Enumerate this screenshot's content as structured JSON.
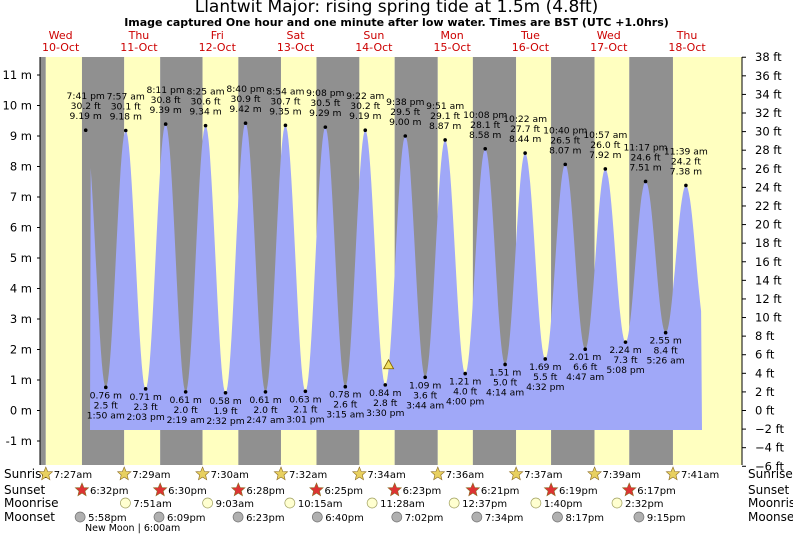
{
  "title": "Llantwit Major: rising  spring tide at 1.5m (4.8ft)",
  "subtitle": "Image captured One hour and one minute after low water. Times are BST (UTC +1.0hrs)",
  "colors": {
    "day": "#ffffc0",
    "night": "#909090",
    "tide": "#a0a8f8",
    "date_text": "#cc0000",
    "sun_star": "#e8d060",
    "sunset_star": "#dd3333"
  },
  "chart_data": {
    "type": "area",
    "xlim_days": [
      0,
      9.0
    ],
    "ylim_m": [
      -1.8,
      11.7
    ],
    "yticks_m": [
      "-1 m",
      "0 m",
      "1 m",
      "2 m",
      "3 m",
      "4 m",
      "5 m",
      "6 m",
      "7 m",
      "8 m",
      "9 m",
      "10 m",
      "11 m"
    ],
    "yticks_ft": [
      "−6 ft",
      "−4 ft",
      "−2 ft",
      "0 ft",
      "2 ft",
      "4 ft",
      "6 ft",
      "8 ft",
      "10 ft",
      "12 ft",
      "14 ft",
      "16 ft",
      "18 ft",
      "20 ft",
      "22 ft",
      "24 ft",
      "26 ft",
      "28 ft",
      "30 ft",
      "32 ft",
      "34 ft",
      "36 ft",
      "38 ft"
    ],
    "day_labels": [
      {
        "dow": "Wed",
        "date": "10-Oct",
        "day": 0
      },
      {
        "dow": "Thu",
        "date": "11-Oct",
        "day": 1
      },
      {
        "dow": "Fri",
        "date": "12-Oct",
        "day": 2
      },
      {
        "dow": "Sat",
        "date": "13-Oct",
        "day": 3
      },
      {
        "dow": "Sun",
        "date": "14-Oct",
        "day": 4
      },
      {
        "dow": "Mon",
        "date": "15-Oct",
        "day": 5
      },
      {
        "dow": "Tue",
        "date": "16-Oct",
        "day": 6
      },
      {
        "dow": "Wed",
        "date": "17-Oct",
        "day": 7
      },
      {
        "dow": "Thu",
        "date": "18-Oct",
        "day": 8
      }
    ],
    "tides": [
      {
        "type": "high",
        "day": 0,
        "time": "7:41 pm",
        "m": 9.19,
        "ft": "30.2 ft",
        "m_label": "9.19 m"
      },
      {
        "type": "low",
        "day": 1,
        "time": "1:50 am",
        "m": 0.76,
        "ft": "2.5 ft",
        "m_label": "0.76 m"
      },
      {
        "type": "high",
        "day": 1,
        "time": "7:57 am",
        "m": 9.18,
        "ft": "30.1 ft",
        "m_label": "9.18 m"
      },
      {
        "type": "low",
        "day": 1,
        "time": "2:03 pm",
        "m": 0.71,
        "ft": "2.3 ft",
        "m_label": "0.71 m"
      },
      {
        "type": "high",
        "day": 1,
        "time": "8:11 pm",
        "m": 9.39,
        "ft": "30.8 ft",
        "m_label": "9.39 m"
      },
      {
        "type": "low",
        "day": 2,
        "time": "2:19 am",
        "m": 0.61,
        "ft": "2.0 ft",
        "m_label": "0.61 m"
      },
      {
        "type": "high",
        "day": 2,
        "time": "8:25 am",
        "m": 9.34,
        "ft": "30.6 ft",
        "m_label": "9.34 m"
      },
      {
        "type": "low",
        "day": 2,
        "time": "2:32 pm",
        "m": 0.58,
        "ft": "1.9 ft",
        "m_label": "0.58 m"
      },
      {
        "type": "high",
        "day": 2,
        "time": "8:40 pm",
        "m": 9.42,
        "ft": "30.9 ft",
        "m_label": "9.42 m"
      },
      {
        "type": "low",
        "day": 3,
        "time": "2:47 am",
        "m": 0.61,
        "ft": "2.0 ft",
        "m_label": "0.61 m"
      },
      {
        "type": "high",
        "day": 3,
        "time": "8:54 am",
        "m": 9.35,
        "ft": "30.7 ft",
        "m_label": "9.35 m"
      },
      {
        "type": "low",
        "day": 3,
        "time": "3:01 pm",
        "m": 0.63,
        "ft": "2.1 ft",
        "m_label": "0.63 m"
      },
      {
        "type": "high",
        "day": 3,
        "time": "9:08 pm",
        "m": 9.29,
        "ft": "30.5 ft",
        "m_label": "9.29 m"
      },
      {
        "type": "low",
        "day": 4,
        "time": "3:15 am",
        "m": 0.78,
        "ft": "2.6 ft",
        "m_label": "0.78 m"
      },
      {
        "type": "high",
        "day": 4,
        "time": "9:22 am",
        "m": 9.19,
        "ft": "30.2 ft",
        "m_label": "9.19 m"
      },
      {
        "type": "low",
        "day": 4,
        "time": "3:30 pm",
        "m": 0.84,
        "ft": "2.8 ft",
        "m_label": "0.84 m"
      },
      {
        "type": "high",
        "day": 4,
        "time": "9:38 pm",
        "m": 9.0,
        "ft": "29.5 ft",
        "m_label": "9.00 m"
      },
      {
        "type": "low",
        "day": 5,
        "time": "3:44 am",
        "m": 1.09,
        "ft": "3.6 ft",
        "m_label": "1.09 m"
      },
      {
        "type": "high",
        "day": 5,
        "time": "9:51 am",
        "m": 8.87,
        "ft": "29.1 ft",
        "m_label": "8.87 m"
      },
      {
        "type": "low",
        "day": 5,
        "time": "4:00 pm",
        "m": 1.21,
        "ft": "4.0 ft",
        "m_label": "1.21 m"
      },
      {
        "type": "high",
        "day": 5,
        "time": "10:08 pm",
        "m": 8.58,
        "ft": "28.1 ft",
        "m_label": "8.58 m"
      },
      {
        "type": "low",
        "day": 6,
        "time": "4:14 am",
        "m": 1.51,
        "ft": "5.0 ft",
        "m_label": "1.51 m"
      },
      {
        "type": "high",
        "day": 6,
        "time": "10:22 am",
        "m": 8.44,
        "ft": "27.7 ft",
        "m_label": "8.44 m"
      },
      {
        "type": "low",
        "day": 6,
        "time": "4:32 pm",
        "m": 1.69,
        "ft": "5.5 ft",
        "m_label": "1.69 m"
      },
      {
        "type": "high",
        "day": 6,
        "time": "10:40 pm",
        "m": 8.07,
        "ft": "26.5 ft",
        "m_label": "8.07 m"
      },
      {
        "type": "low",
        "day": 7,
        "time": "4:47 am",
        "m": 2.01,
        "ft": "6.6 ft",
        "m_label": "2.01 m"
      },
      {
        "type": "high",
        "day": 7,
        "time": "10:57 am",
        "m": 7.92,
        "ft": "26.0 ft",
        "m_label": "7.92 m"
      },
      {
        "type": "low",
        "day": 7,
        "time": "5:08 pm",
        "m": 2.24,
        "ft": "7.3 ft",
        "m_label": "2.24 m"
      },
      {
        "type": "high",
        "day": 7,
        "time": "11:17 pm",
        "m": 7.51,
        "ft": "24.6 ft",
        "m_label": "7.51 m"
      },
      {
        "type": "low",
        "day": 8,
        "time": "5:26 am",
        "m": 2.55,
        "ft": "8.4 ft",
        "m_label": "2.55 m"
      },
      {
        "type": "high",
        "day": 8,
        "time": "11:39 am",
        "m": 7.38,
        "ft": "24.2 ft",
        "m_label": "7.38 m"
      }
    ],
    "now_marker": {
      "day": 4,
      "time": "4:31 pm",
      "m": 1.5
    },
    "rows": {
      "labels": [
        "Sunrise",
        "Sunset",
        "Moonrise",
        "Moonset"
      ],
      "sunrise": [
        {
          "day": 0,
          "time": "7:27am"
        },
        {
          "day": 1,
          "time": "7:29am"
        },
        {
          "day": 2,
          "time": "7:30am"
        },
        {
          "day": 3,
          "time": "7:32am"
        },
        {
          "day": 4,
          "time": "7:34am"
        },
        {
          "day": 5,
          "time": "7:36am"
        },
        {
          "day": 6,
          "time": "7:37am"
        },
        {
          "day": 7,
          "time": "7:39am"
        },
        {
          "day": 8,
          "time": "7:41am"
        }
      ],
      "sunset": [
        {
          "day": 0,
          "time": "6:32pm"
        },
        {
          "day": 1,
          "time": "6:30pm"
        },
        {
          "day": 2,
          "time": "6:28pm"
        },
        {
          "day": 3,
          "time": "6:25pm"
        },
        {
          "day": 4,
          "time": "6:23pm"
        },
        {
          "day": 5,
          "time": "6:21pm"
        },
        {
          "day": 6,
          "time": "6:19pm"
        },
        {
          "day": 7,
          "time": "6:17pm"
        }
      ],
      "moonrise": [
        {
          "day": 1,
          "time": "7:51am"
        },
        {
          "day": 2,
          "time": "9:03am"
        },
        {
          "day": 3,
          "time": "10:15am"
        },
        {
          "day": 4,
          "time": "11:28am"
        },
        {
          "day": 5,
          "time": "12:37pm"
        },
        {
          "day": 6,
          "time": "1:40pm"
        },
        {
          "day": 7,
          "time": "2:32pm"
        }
      ],
      "moonset": [
        {
          "day": 0,
          "time": "5:58pm"
        },
        {
          "day": 1,
          "time": "6:09pm"
        },
        {
          "day": 2,
          "time": "6:23pm"
        },
        {
          "day": 3,
          "time": "6:40pm"
        },
        {
          "day": 4,
          "time": "7:02pm"
        },
        {
          "day": 5,
          "time": "7:34pm"
        },
        {
          "day": 6,
          "time": "8:17pm"
        },
        {
          "day": 7,
          "time": "9:15pm"
        }
      ]
    },
    "new_moon": "New Moon | 6:00am"
  }
}
